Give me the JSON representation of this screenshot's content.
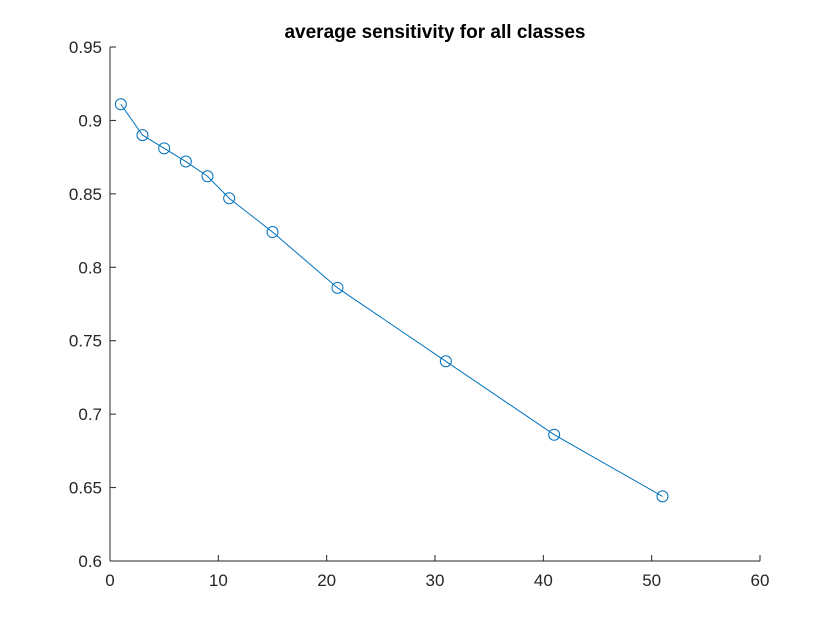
{
  "chart_data": {
    "type": "line",
    "title": "average sensitivity for all classes",
    "xlabel": "",
    "ylabel": "",
    "xlim": [
      0,
      60
    ],
    "ylim": [
      0.6,
      0.95
    ],
    "xticks": [
      0,
      10,
      20,
      30,
      40,
      50,
      60
    ],
    "yticks": [
      0.6,
      0.65,
      0.7,
      0.75,
      0.8,
      0.85,
      0.9,
      0.95
    ],
    "xtick_labels": [
      "0",
      "10",
      "20",
      "30",
      "40",
      "50",
      "60"
    ],
    "ytick_labels": [
      "0.6",
      "0.65",
      "0.7",
      "0.75",
      "0.8",
      "0.85",
      "0.9",
      "0.95"
    ],
    "grid": false,
    "marker": "circle",
    "color": "#0072BD",
    "series": [
      {
        "x": [
          1,
          3,
          5,
          7,
          9,
          11,
          15,
          21,
          31,
          41,
          51
        ],
        "values": [
          0.911,
          0.89,
          0.881,
          0.872,
          0.862,
          0.847,
          0.824,
          0.786,
          0.736,
          0.686,
          0.644
        ]
      }
    ]
  }
}
